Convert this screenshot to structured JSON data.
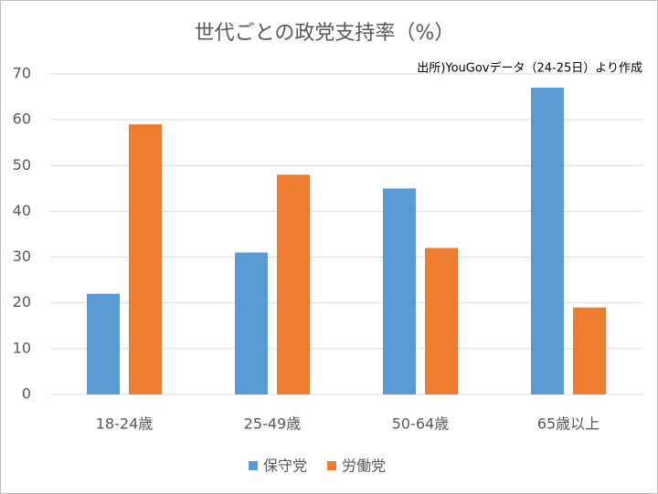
{
  "chart_data": {
    "type": "bar",
    "title": "世代ごとの政党支持率（%）",
    "annotation": "出所)YouGovデータ（24-25日）より作成",
    "categories": [
      "18-24歳",
      "25-49歳",
      "50-64歳",
      "65歳以上"
    ],
    "series": [
      {
        "name": "保守党",
        "color": "#5b9bd5",
        "values": [
          22,
          31,
          45,
          67
        ]
      },
      {
        "name": "労働党",
        "color": "#ed7d31",
        "values": [
          59,
          48,
          32,
          19
        ]
      }
    ],
    "ylim": [
      0,
      70
    ],
    "yticks": [
      0,
      10,
      20,
      30,
      40,
      50,
      60,
      70
    ],
    "grid": true,
    "legend": "bottom"
  }
}
